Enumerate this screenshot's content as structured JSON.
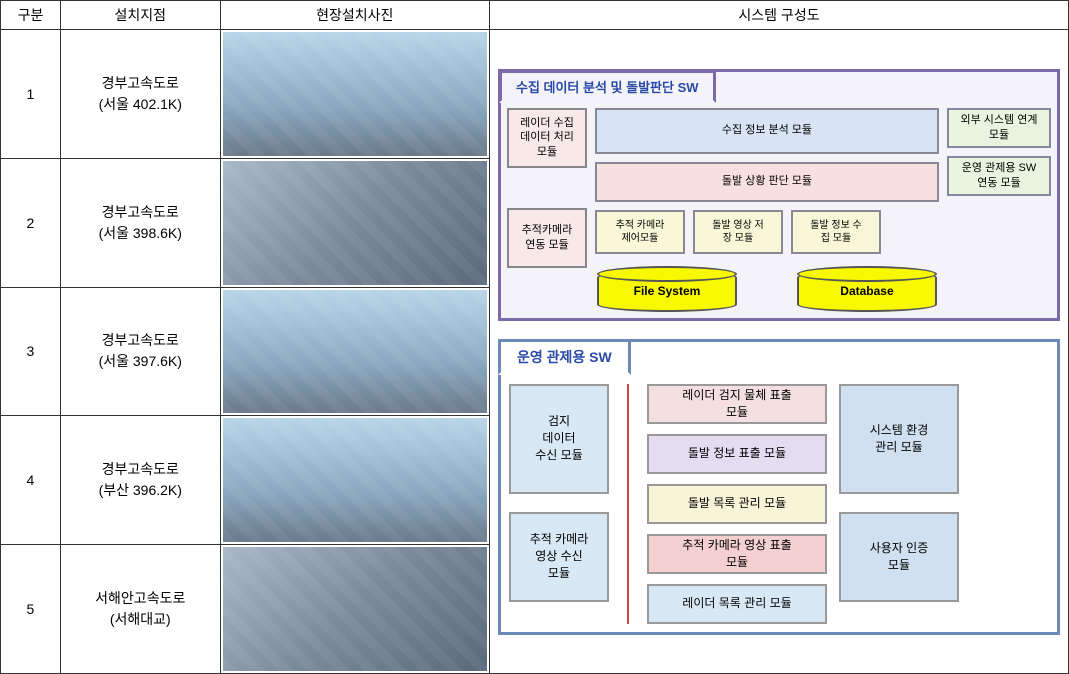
{
  "headers": {
    "num": "구분",
    "loc": "설치지점",
    "photo": "현장설치사진",
    "diag": "시스템 구성도"
  },
  "rows": [
    {
      "n": "1",
      "loc1": "경부고속도로",
      "loc2": "(서울 402.1K)"
    },
    {
      "n": "2",
      "loc1": "경부고속도로",
      "loc2": "(서울 398.6K)"
    },
    {
      "n": "3",
      "loc1": "경부고속도로",
      "loc2": "(서울 397.6K)"
    },
    {
      "n": "4",
      "loc1": "경부고속도로",
      "loc2": "(부산 396.2K)"
    },
    {
      "n": "5",
      "loc1": "서해안고속도로",
      "loc2": "(서해대교)"
    }
  ],
  "diag1": {
    "title": "수집 데이터 분석 및 돌발판단 SW",
    "left1": "레이더 수집\n데이터 처리\n모듈",
    "left2": "추적카메라\n연동 모듈",
    "mid1": "수집 정보 분석 모듈",
    "mid2": "돌발 상황 판단 모듈",
    "y1": "추적 카메라\n제어모듈",
    "y2": "돌발 영상 저\n장 모듈",
    "y3": "돌발 정보 수\n집 모듈",
    "right1": "외부 시스템 연계\n모듈",
    "right2": "운영 관제용 SW\n연동 모듈",
    "cyl1": "File System",
    "cyl2": "Database"
  },
  "diag2": {
    "title": "운영 관제용 SW",
    "left1": "검지\n데이터\n수신 모듈",
    "left2": "추적 카메라\n영상 수신\n모듈",
    "m1": "레이더 검지 물체 표출\n모듈",
    "m2": "돌발 정보 표출 모듈",
    "m3": "돌발 목록 관리 모듈",
    "m4": "추적 카메라 영상 표출\n모듈",
    "m5": "레이더 목록 관리 모듈",
    "right1": "시스템 환경\n관리 모듈",
    "right2": "사용자 인증\n모듈"
  },
  "colors": {
    "border_main": "#333333",
    "diag1_border": "#7a6aa8",
    "diag2_border": "#6a8ab8",
    "cylinder": "#f8f800"
  }
}
